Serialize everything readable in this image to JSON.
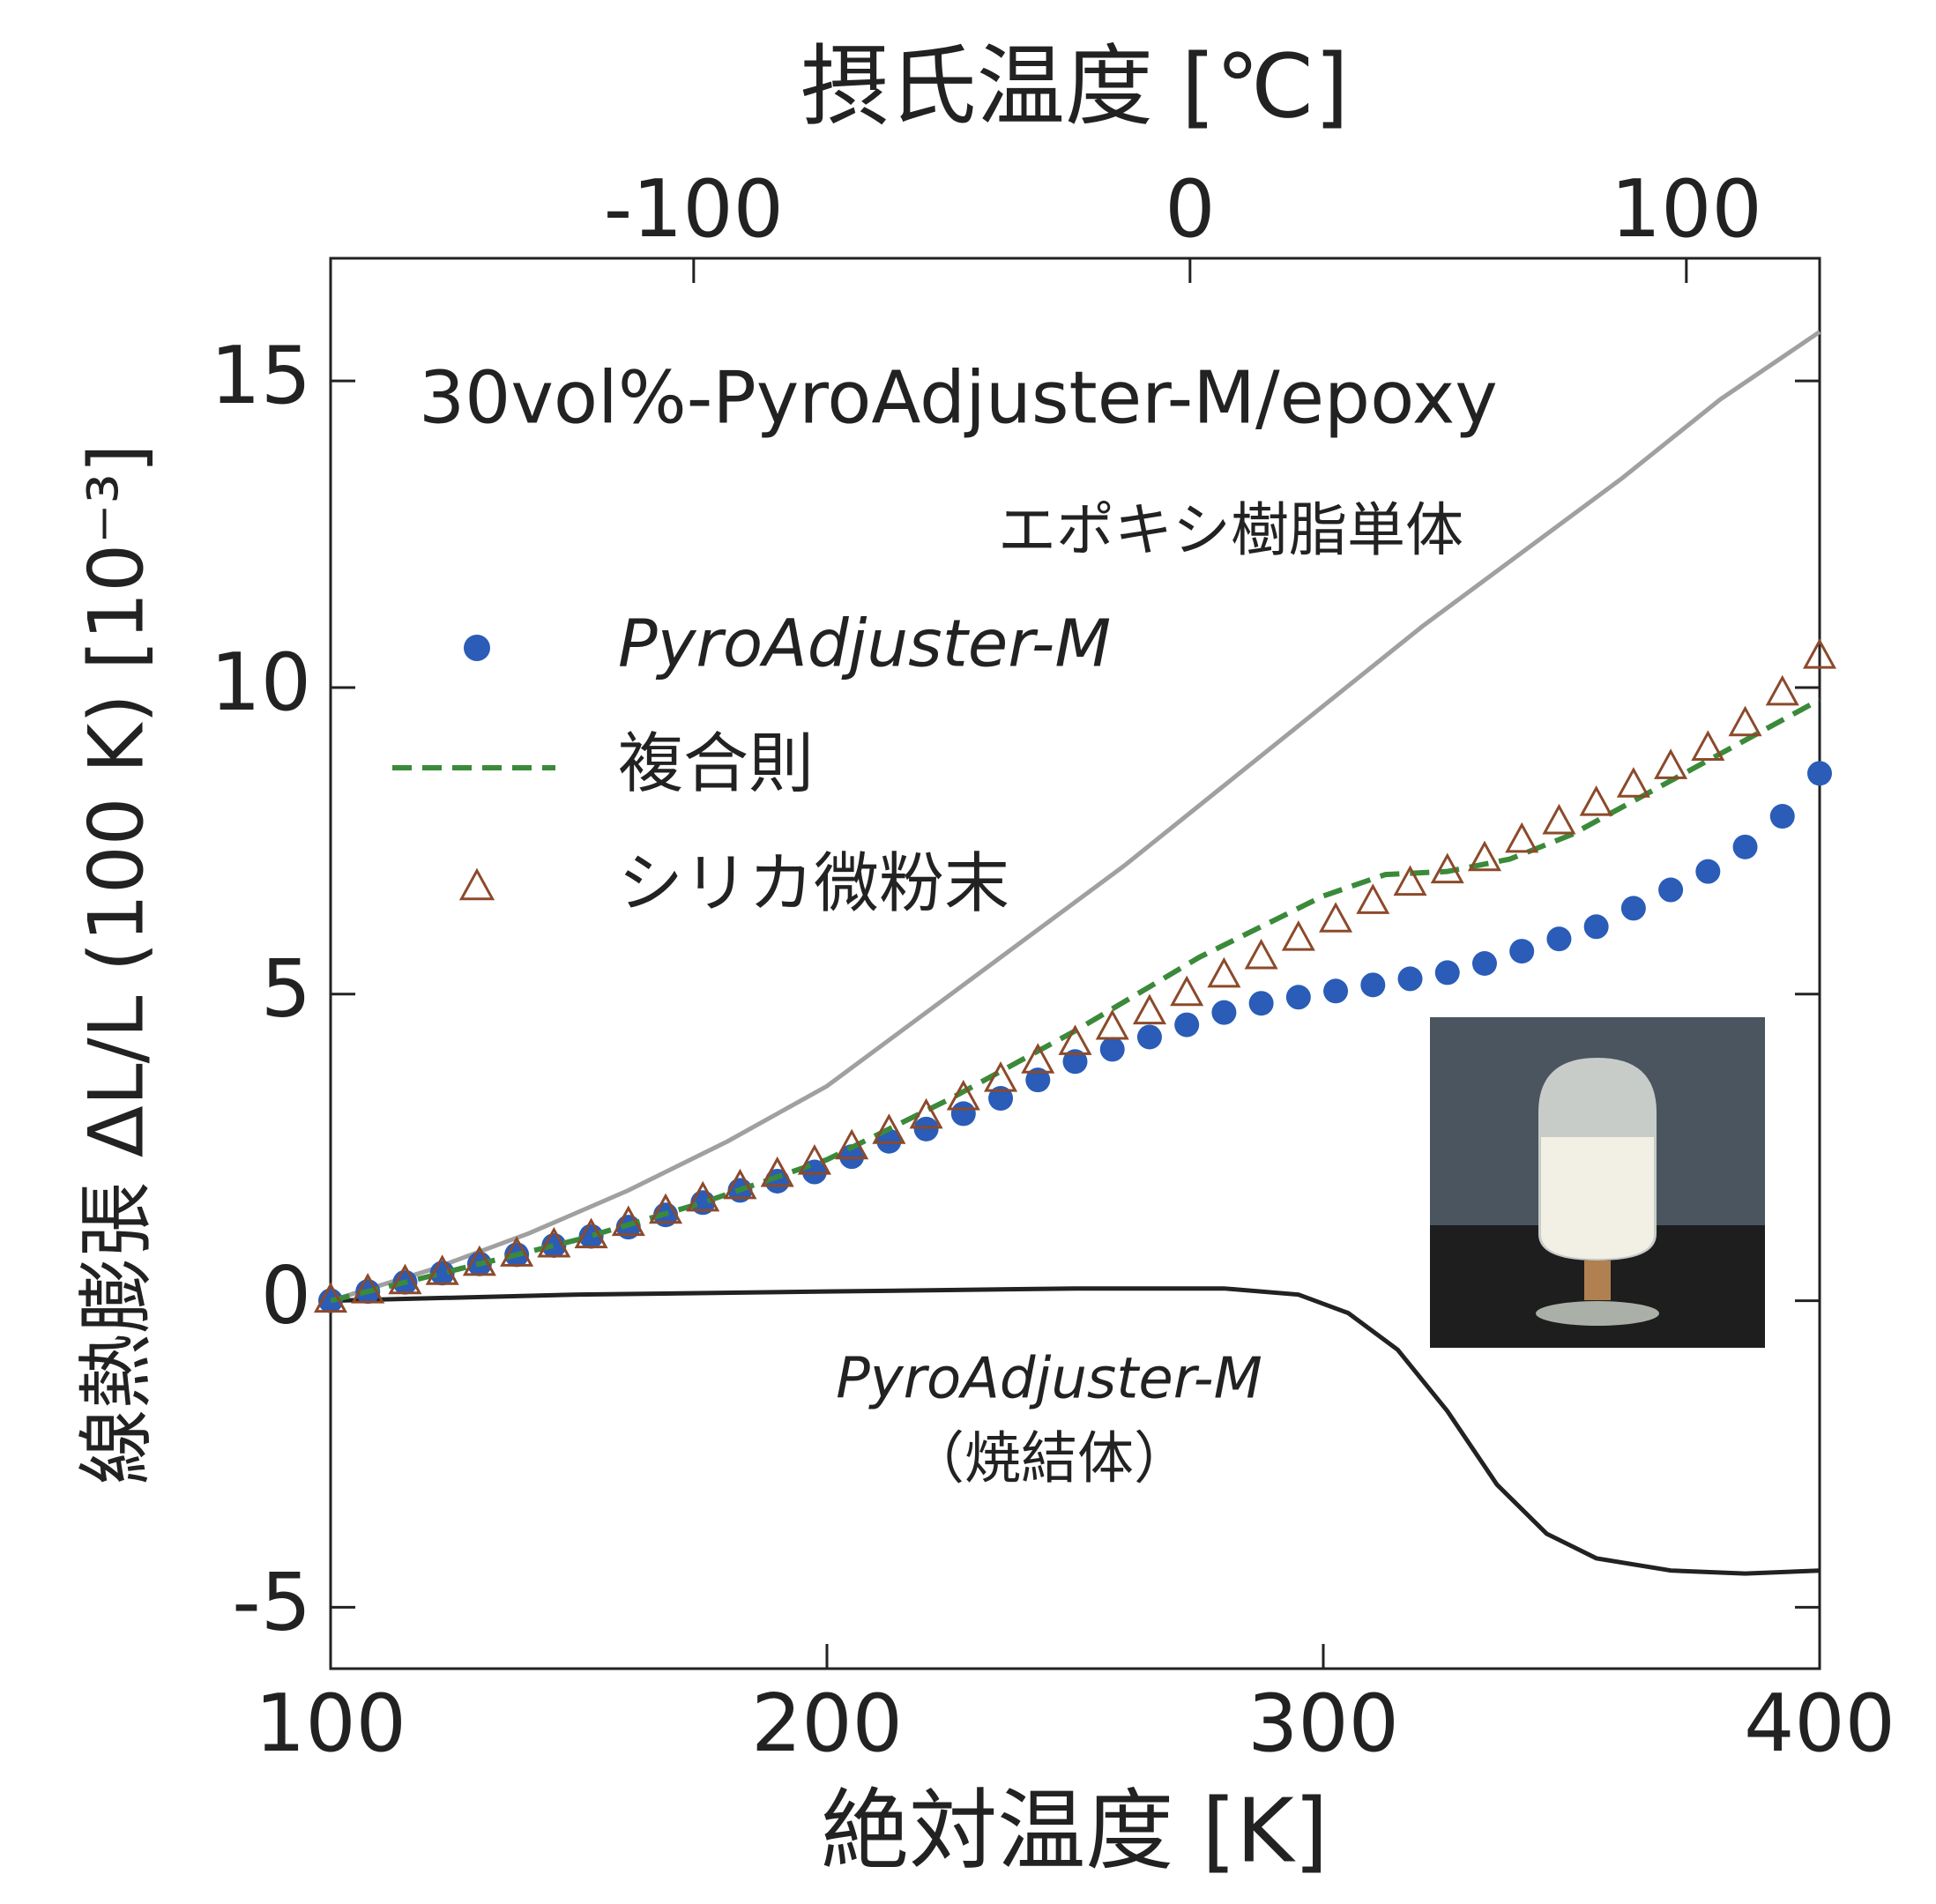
{
  "chart_data": {
    "type": "line",
    "title": "摂氏温度 [℃]",
    "x_label": "絶対温度 [K]",
    "y_label": "線熱膨張 ΔL/L (100 K) [10⁻³]",
    "annotation": "30vol%-PyroAdjuster-M/epoxy",
    "annotation_sub": "（焼結体）",
    "xlim": [
      100,
      400
    ],
    "xticks": [
      100,
      200,
      300,
      400
    ],
    "x2lim": [
      -173.15,
      126.85
    ],
    "x2ticks": [
      -100,
      0,
      100
    ],
    "ylim": [
      -6,
      17
    ],
    "yticks": [
      -5,
      0,
      5,
      10,
      15
    ],
    "series": [
      {
        "name": "エポキシ樹脂単体",
        "color": "#a0a0a0",
        "style": "solid",
        "legend": false,
        "x": [
          100,
          120,
          140,
          160,
          180,
          200,
          220,
          240,
          260,
          280,
          300,
          320,
          340,
          360,
          380,
          400
        ],
        "values": [
          0,
          0.5,
          1.1,
          1.8,
          2.6,
          3.5,
          4.7,
          5.9,
          7.1,
          8.4,
          9.7,
          11.0,
          12.2,
          13.4,
          14.7,
          15.8
        ]
      },
      {
        "name": "PyroAdjuster-M",
        "color": "#222222",
        "style": "solid",
        "legend": false,
        "x": [
          100,
          150,
          200,
          250,
          280,
          295,
          305,
          315,
          325,
          335,
          345,
          355,
          370,
          385,
          400
        ],
        "values": [
          0,
          0.1,
          0.15,
          0.2,
          0.2,
          0.1,
          -0.2,
          -0.8,
          -1.8,
          -3.0,
          -3.8,
          -4.2,
          -4.4,
          -4.45,
          -4.4
        ]
      },
      {
        "name": "PyroAdjuster-M",
        "color": "#2a5cb8",
        "style": "dot",
        "legend": true,
        "x": [
          100,
          107.5,
          115,
          122.5,
          130,
          137.5,
          145,
          152.5,
          160,
          167.5,
          175,
          182.5,
          190,
          197.5,
          205,
          212.5,
          220,
          227.5,
          235,
          242.5,
          250,
          257.5,
          265,
          272.5,
          280,
          287.5,
          295,
          302.5,
          310,
          317.5,
          325,
          332.5,
          340,
          347.5,
          355,
          362.5,
          370,
          377.5,
          385,
          392.5,
          400
        ],
        "values": [
          0,
          0.15,
          0.3,
          0.45,
          0.6,
          0.75,
          0.9,
          1.05,
          1.2,
          1.4,
          1.6,
          1.8,
          1.95,
          2.1,
          2.35,
          2.6,
          2.8,
          3.05,
          3.3,
          3.6,
          3.9,
          4.1,
          4.3,
          4.5,
          4.7,
          4.85,
          4.95,
          5.05,
          5.15,
          5.25,
          5.35,
          5.5,
          5.7,
          5.9,
          6.1,
          6.4,
          6.7,
          7.0,
          7.4,
          7.9,
          8.6
        ]
      },
      {
        "name": "複合則",
        "color": "#3a8a3a",
        "style": "dash",
        "legend": true,
        "x": [
          100,
          125,
          150,
          175,
          200,
          225,
          250,
          275,
          300,
          312.5,
          325,
          337.5,
          350,
          375,
          400
        ],
        "values": [
          0,
          0.5,
          1.0,
          1.6,
          2.3,
          3.3,
          4.4,
          5.6,
          6.6,
          6.95,
          7.0,
          7.2,
          7.6,
          8.7,
          9.8
        ]
      },
      {
        "name": "シリカ微粉末",
        "color": "#8b4a2b",
        "style": "triangle",
        "legend": true,
        "x": [
          100,
          107.5,
          115,
          122.5,
          130,
          137.5,
          145,
          152.5,
          160,
          167.5,
          175,
          182.5,
          190,
          197.5,
          205,
          212.5,
          220,
          227.5,
          235,
          242.5,
          250,
          257.5,
          265,
          272.5,
          280,
          287.5,
          295,
          302.5,
          310,
          317.5,
          325,
          332.5,
          340,
          347.5,
          355,
          362.5,
          370,
          377.5,
          385,
          392.5,
          400
        ],
        "values": [
          0,
          0.15,
          0.3,
          0.45,
          0.6,
          0.75,
          0.9,
          1.05,
          1.25,
          1.45,
          1.65,
          1.85,
          2.05,
          2.25,
          2.5,
          2.75,
          3.0,
          3.3,
          3.6,
          3.9,
          4.2,
          4.45,
          4.7,
          5.0,
          5.3,
          5.6,
          5.9,
          6.2,
          6.5,
          6.8,
          7.0,
          7.2,
          7.5,
          7.8,
          8.1,
          8.4,
          8.7,
          9.0,
          9.4,
          9.9,
          10.5
        ]
      }
    ]
  }
}
